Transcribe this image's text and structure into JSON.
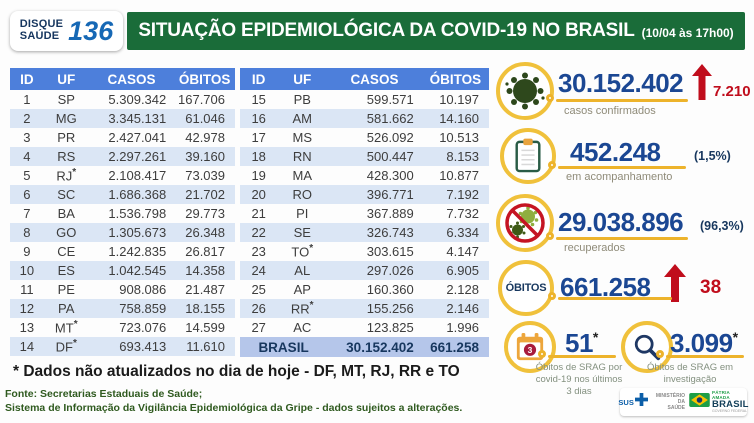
{
  "header": {
    "logo_line1": "DISQUE",
    "logo_line2": "SAÚDE",
    "logo_number": "136",
    "title": "SITUAÇÃO EPIDEMIOLÓGICA DA COVID-19 NO BRASIL",
    "timestamp": "(10/04 às 17h00)"
  },
  "tables": [
    {
      "headers": [
        "ID",
        "UF",
        "CASOS",
        "ÓBITOS"
      ],
      "rows": [
        [
          "1",
          "SP",
          "5.309.342",
          "167.706"
        ],
        [
          "2",
          "MG",
          "3.345.131",
          "61.046"
        ],
        [
          "3",
          "PR",
          "2.427.041",
          "42.978"
        ],
        [
          "4",
          "RS",
          "2.297.261",
          "39.160"
        ],
        [
          "5",
          "RJ*",
          "2.108.417",
          "73.039"
        ],
        [
          "6",
          "SC",
          "1.686.368",
          "21.702"
        ],
        [
          "7",
          "BA",
          "1.536.798",
          "29.773"
        ],
        [
          "8",
          "GO",
          "1.305.673",
          "26.348"
        ],
        [
          "9",
          "CE",
          "1.242.835",
          "26.817"
        ],
        [
          "10",
          "ES",
          "1.042.545",
          "14.358"
        ],
        [
          "11",
          "PE",
          "908.086",
          "21.487"
        ],
        [
          "12",
          "PA",
          "758.859",
          "18.155"
        ],
        [
          "13",
          "MT*",
          "723.076",
          "14.599"
        ],
        [
          "14",
          "DF*",
          "693.413",
          "11.610"
        ]
      ]
    },
    {
      "headers": [
        "ID",
        "UF",
        "CASOS",
        "ÓBITOS"
      ],
      "rows": [
        [
          "15",
          "PB",
          "599.571",
          "10.197"
        ],
        [
          "16",
          "AM",
          "581.662",
          "14.160"
        ],
        [
          "17",
          "MS",
          "526.092",
          "10.513"
        ],
        [
          "18",
          "RN",
          "500.447",
          "8.153"
        ],
        [
          "19",
          "MA",
          "428.300",
          "10.877"
        ],
        [
          "20",
          "RO",
          "396.771",
          "7.192"
        ],
        [
          "21",
          "PI",
          "367.889",
          "7.732"
        ],
        [
          "22",
          "SE",
          "326.743",
          "6.334"
        ],
        [
          "23",
          "TO*",
          "303.615",
          "4.147"
        ],
        [
          "24",
          "AL",
          "297.026",
          "6.905"
        ],
        [
          "25",
          "AP",
          "160.360",
          "2.128"
        ],
        [
          "26",
          "RR*",
          "155.256",
          "2.146"
        ],
        [
          "27",
          "AC",
          "123.825",
          "1.996"
        ]
      ],
      "total": {
        "label": "BRASIL",
        "casos": "30.152.402",
        "obitos": "661.258"
      }
    }
  ],
  "stats": [
    {
      "icon": "virus-icon",
      "value": "30.152.402",
      "delta": "7.210",
      "delta_direction": "up",
      "label": "casos confirmados"
    },
    {
      "icon": "clipboard-icon",
      "value": "452.248",
      "percent": "(1,5%)",
      "label": "em acompanhamento"
    },
    {
      "icon": "no-virus-icon",
      "value": "29.038.896",
      "percent": "(96,3%)",
      "label": "recuperados"
    },
    {
      "icon": "obitos-circle",
      "circle_text": "ÓBITOS",
      "value": "661.258",
      "delta": "38",
      "delta_direction": "up"
    },
    {
      "icon": "calendar-icon",
      "value": "51",
      "asterisk": "*",
      "label_lines": [
        "Óbitos de SRAG por",
        "covid-19 nos últimos",
        "3 dias"
      ]
    },
    {
      "icon": "magnifier-icon",
      "value": "3.099",
      "asterisk": "*",
      "label_lines": [
        "Óbitos de SRAG em",
        "investigação"
      ]
    }
  ],
  "footnote": "* Dados não atualizados no dia de hoje - DF, MT, RJ, RR e TO",
  "sources": [
    "Fonte: Secretarias Estaduais de Saúde;",
    "Sistema de Informação da Vigilância Epidemiológica da Gripe - dados sujeitos a alterações."
  ],
  "gov_logos": {
    "sus": "SUS",
    "ministry_line1": "MINISTÉRIO DA",
    "ministry_line2": "SAÚDE",
    "patria_top": "PÁTRIA AMADA",
    "brasil": "BRASIL",
    "patria_sub": "GOVERNO FEDERAL"
  },
  "colors": {
    "banner_green": "#1a6c39",
    "table_header_blue": "#4d7fdb",
    "table_alt_row": "#dbe6f5",
    "total_row": "#b5c6ea",
    "stat_number_navy": "#1b4793",
    "alert_red": "#c00d1c",
    "accent_yellow": "#f0c13b",
    "source_green": "#2f5a1f"
  }
}
